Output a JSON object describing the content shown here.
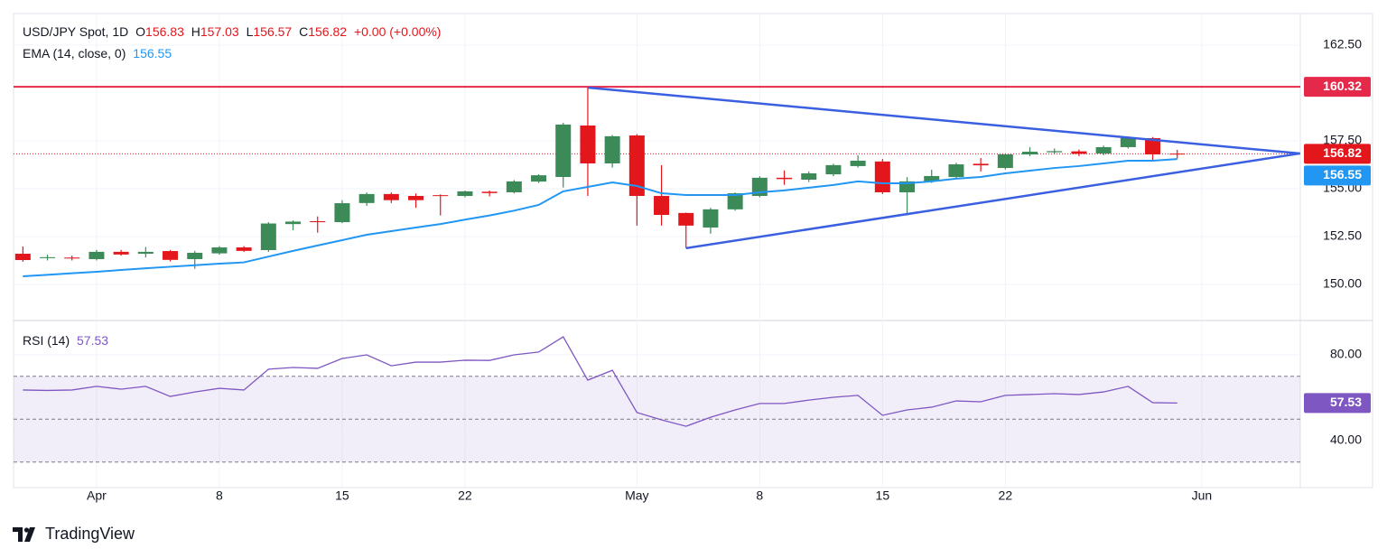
{
  "chart_data": {
    "type": "candlestick",
    "title": "USD/JPY Spot, 1D",
    "ohlc_letters": [
      "O",
      "H",
      "L",
      "C"
    ],
    "change_label": "+0.00 (+0.00%)",
    "up_color": "#3b8a58",
    "down_color": "#e3161c",
    "xlim": [
      -0.38,
      52.01
    ],
    "xticks": [
      {
        "value": 3,
        "label": "Apr"
      },
      {
        "value": 8,
        "label": "8"
      },
      {
        "value": 13,
        "label": "15"
      },
      {
        "value": 18,
        "label": "22"
      },
      {
        "value": 25,
        "label": "May"
      },
      {
        "value": 30,
        "label": "8"
      },
      {
        "value": 35,
        "label": "15"
      },
      {
        "value": 40,
        "label": "22"
      },
      {
        "value": 48,
        "label": "Jun"
      }
    ],
    "ylim": [
      148.11,
      164.15
    ],
    "yticks": [
      {
        "value": 150,
        "label": "150.00"
      },
      {
        "value": 152.5,
        "label": "152.50"
      },
      {
        "value": 155,
        "label": "155.00"
      },
      {
        "value": 157.5,
        "label": "157.50"
      },
      {
        "value": 162.5,
        "label": "162.50"
      }
    ],
    "grid": true,
    "open": [
      151.6,
      151.37,
      151.4,
      151.32,
      151.7,
      151.6,
      151.74,
      151.32,
      151.62,
      151.93,
      151.79,
      153.15,
      153.3,
      153.25,
      154.25,
      154.72,
      154.62,
      154.66,
      154.62,
      154.84,
      154.81,
      155.37,
      155.61,
      158.3,
      156.32,
      157.78,
      154.62,
      153.73,
      152.97,
      153.92,
      154.62,
      155.57,
      155.47,
      155.75,
      156.18,
      156.42,
      154.81,
      155.38,
      155.61,
      156.3,
      156.08,
      156.79,
      156.9,
      156.95,
      156.84,
      157.17,
      157.64,
      156.83
    ],
    "high": [
      151.98,
      151.55,
      151.5,
      151.8,
      151.8,
      151.95,
      151.8,
      151.75,
      152.0,
      152.0,
      153.25,
      153.35,
      153.55,
      154.4,
      154.8,
      154.8,
      154.75,
      154.7,
      154.9,
      154.9,
      155.45,
      155.75,
      158.44,
      160.28,
      157.8,
      157.85,
      156.23,
      153.75,
      154.0,
      154.8,
      155.65,
      155.95,
      155.9,
      156.3,
      156.75,
      156.55,
      155.6,
      155.99,
      156.35,
      156.6,
      156.85,
      157.17,
      157.1,
      157.05,
      157.25,
      157.7,
      157.7,
      157.03
    ],
    "low": [
      151.18,
      151.25,
      151.25,
      151.25,
      151.5,
      151.4,
      151.2,
      150.81,
      151.55,
      151.7,
      151.7,
      152.83,
      152.7,
      153.2,
      154.1,
      154.25,
      154.0,
      153.6,
      154.55,
      154.6,
      154.75,
      155.3,
      155.06,
      154.62,
      156.1,
      153.07,
      153.07,
      151.89,
      152.65,
      153.85,
      154.55,
      155.2,
      155.35,
      155.65,
      156.1,
      154.72,
      153.6,
      155.3,
      155.55,
      155.9,
      156.0,
      156.7,
      156.8,
      156.7,
      156.75,
      157.1,
      156.46,
      156.57
    ],
    "close": [
      151.27,
      151.42,
      151.35,
      151.7,
      151.56,
      151.7,
      151.28,
      151.65,
      151.93,
      151.75,
      153.18,
      153.28,
      153.25,
      154.24,
      154.72,
      154.4,
      154.4,
      154.62,
      154.86,
      154.77,
      155.38,
      155.7,
      158.35,
      156.32,
      157.74,
      154.62,
      153.63,
      153.07,
      153.92,
      154.76,
      155.57,
      155.5,
      155.8,
      156.23,
      156.46,
      154.81,
      155.38,
      155.66,
      156.27,
      156.22,
      156.79,
      156.93,
      156.96,
      156.82,
      157.17,
      157.64,
      156.79,
      156.82
    ],
    "ema": {
      "name": "EMA (14, close, 0)",
      "color": "#2196f3",
      "values": [
        150.42,
        150.5,
        150.58,
        150.66,
        150.75,
        150.84,
        150.92,
        151.0,
        151.08,
        151.15,
        151.45,
        151.75,
        152.03,
        152.31,
        152.59,
        152.78,
        152.97,
        153.15,
        153.38,
        153.6,
        153.85,
        154.15,
        154.86,
        155.09,
        155.33,
        155.14,
        154.76,
        154.67,
        154.67,
        154.67,
        154.81,
        154.91,
        155.05,
        155.19,
        155.38,
        155.28,
        155.28,
        155.38,
        155.52,
        155.61,
        155.8,
        155.94,
        156.08,
        156.18,
        156.32,
        156.46,
        156.46,
        156.55
      ]
    },
    "resistance": {
      "value": 160.32,
      "color": "#e5294a"
    },
    "trendlines": {
      "color": "#3a5fe0",
      "lines": [
        {
          "x": [
            23,
            52
          ],
          "y": [
            160.28,
            156.84
          ]
        },
        {
          "x": [
            27,
            52
          ],
          "y": [
            151.89,
            156.84
          ]
        }
      ]
    },
    "rsi": {
      "name": "RSI (14)",
      "color": "#7e57c2",
      "values": [
        63.6,
        63.4,
        63.6,
        65.3,
        64.0,
        65.3,
        60.6,
        62.7,
        64.4,
        63.6,
        73.3,
        74.1,
        73.7,
        78.3,
        80.0,
        74.9,
        76.6,
        76.6,
        77.5,
        77.4,
        80.0,
        81.3,
        88.4,
        68.2,
        72.8,
        53.1,
        49.7,
        46.7,
        50.9,
        54.3,
        57.3,
        57.3,
        58.9,
        60.2,
        61.1,
        51.8,
        54.3,
        55.6,
        58.5,
        58.1,
        61.1,
        61.5,
        61.9,
        61.5,
        62.7,
        65.3,
        57.7,
        57.53
      ],
      "ylim": [
        18.1,
        96
      ],
      "yticks": [
        {
          "value": 40,
          "label": "40.00"
        },
        {
          "value": 80,
          "label": "80.00"
        }
      ],
      "levels": [
        30,
        50,
        70
      ]
    },
    "brand": "TradingView"
  }
}
